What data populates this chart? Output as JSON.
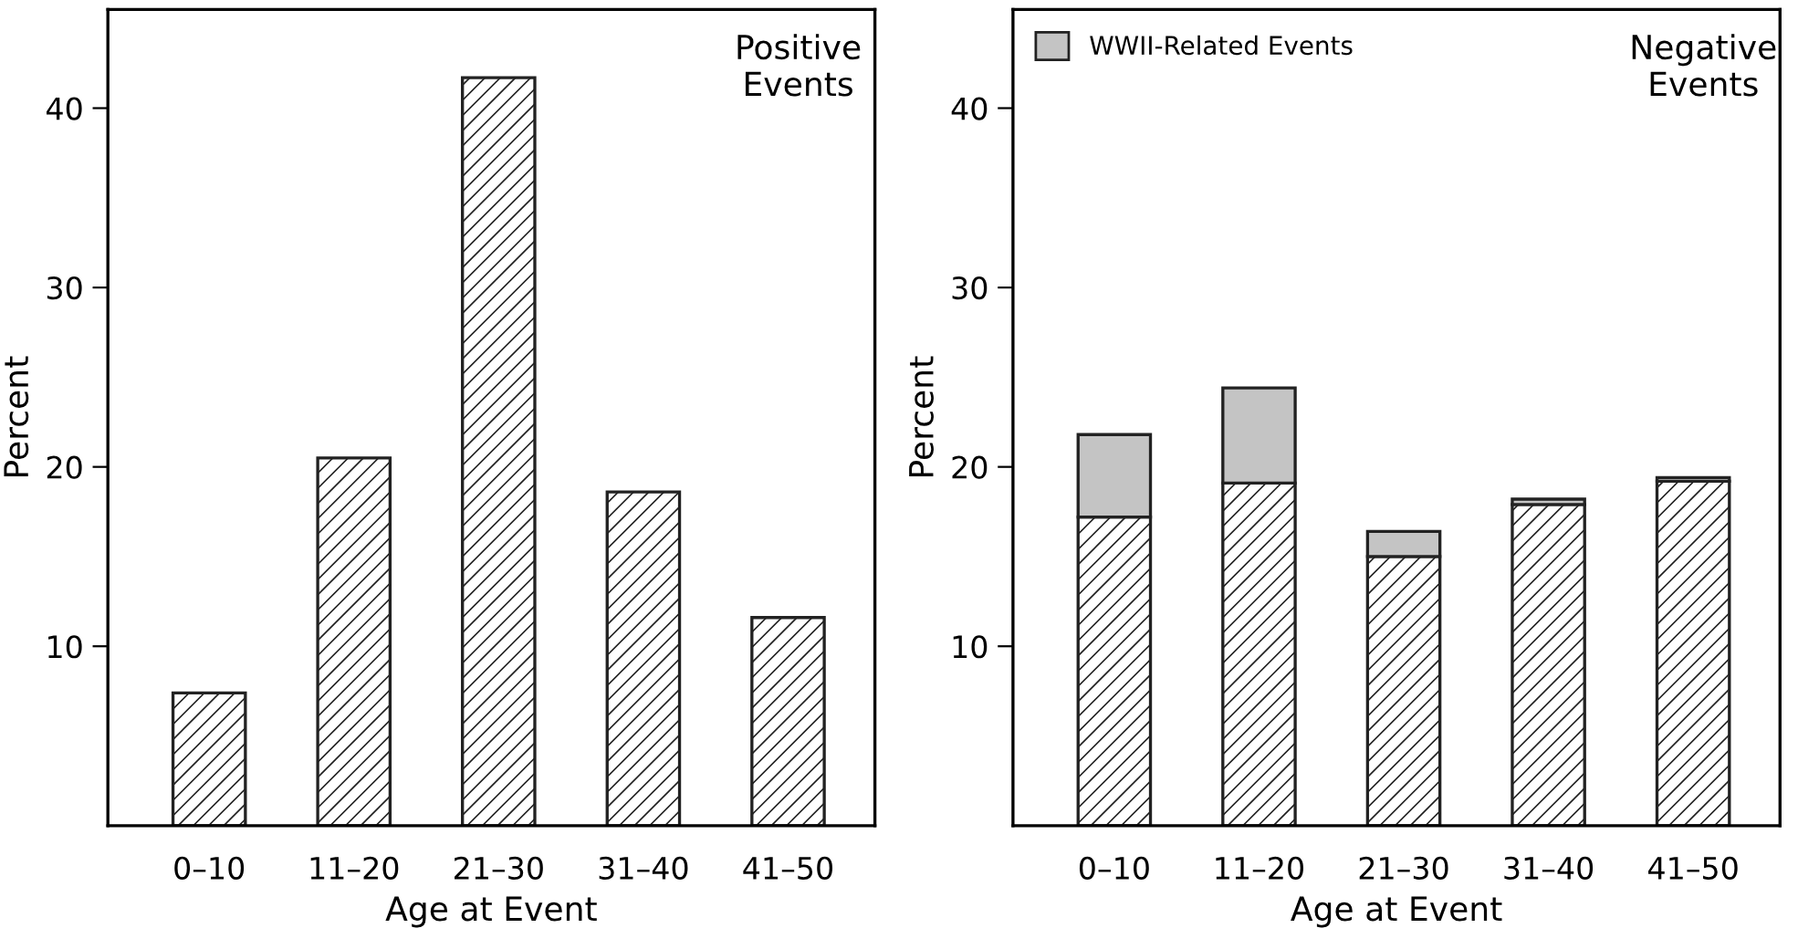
{
  "chart_data": [
    {
      "type": "bar",
      "title": "Positive\nEvents",
      "xlabel": "Age at Event",
      "ylabel": "Percent",
      "categories": [
        "0–10",
        "11–20",
        "21–30",
        "31–40",
        "41–50"
      ],
      "series": [
        {
          "color": "#222222",
          "values": [
            7.4,
            20.5,
            41.7,
            18.6,
            11.6
          ]
        }
      ],
      "ylim": [
        0,
        45.5
      ],
      "yticks": [
        10,
        20,
        30,
        40
      ],
      "grid": false,
      "legend": false
    },
    {
      "type": "bar",
      "title": "Negative\nEvents",
      "xlabel": "Age at Event",
      "ylabel": "Percent",
      "categories": [
        "0–10",
        "11–20",
        "21–30",
        "31–40",
        "41–50"
      ],
      "stacked": true,
      "series": [
        {
          "color": "#222222",
          "values": [
            17.2,
            19.1,
            15.0,
            17.9,
            19.2
          ]
        },
        {
          "name": "WWII-Related Events",
          "color": "#c4c4c4",
          "values": [
            4.6,
            5.3,
            1.4,
            0.3,
            0.2
          ]
        }
      ],
      "ylim": [
        0,
        45.5
      ],
      "yticks": [
        10,
        20,
        30,
        40
      ],
      "grid": false,
      "legend": "top left"
    }
  ]
}
